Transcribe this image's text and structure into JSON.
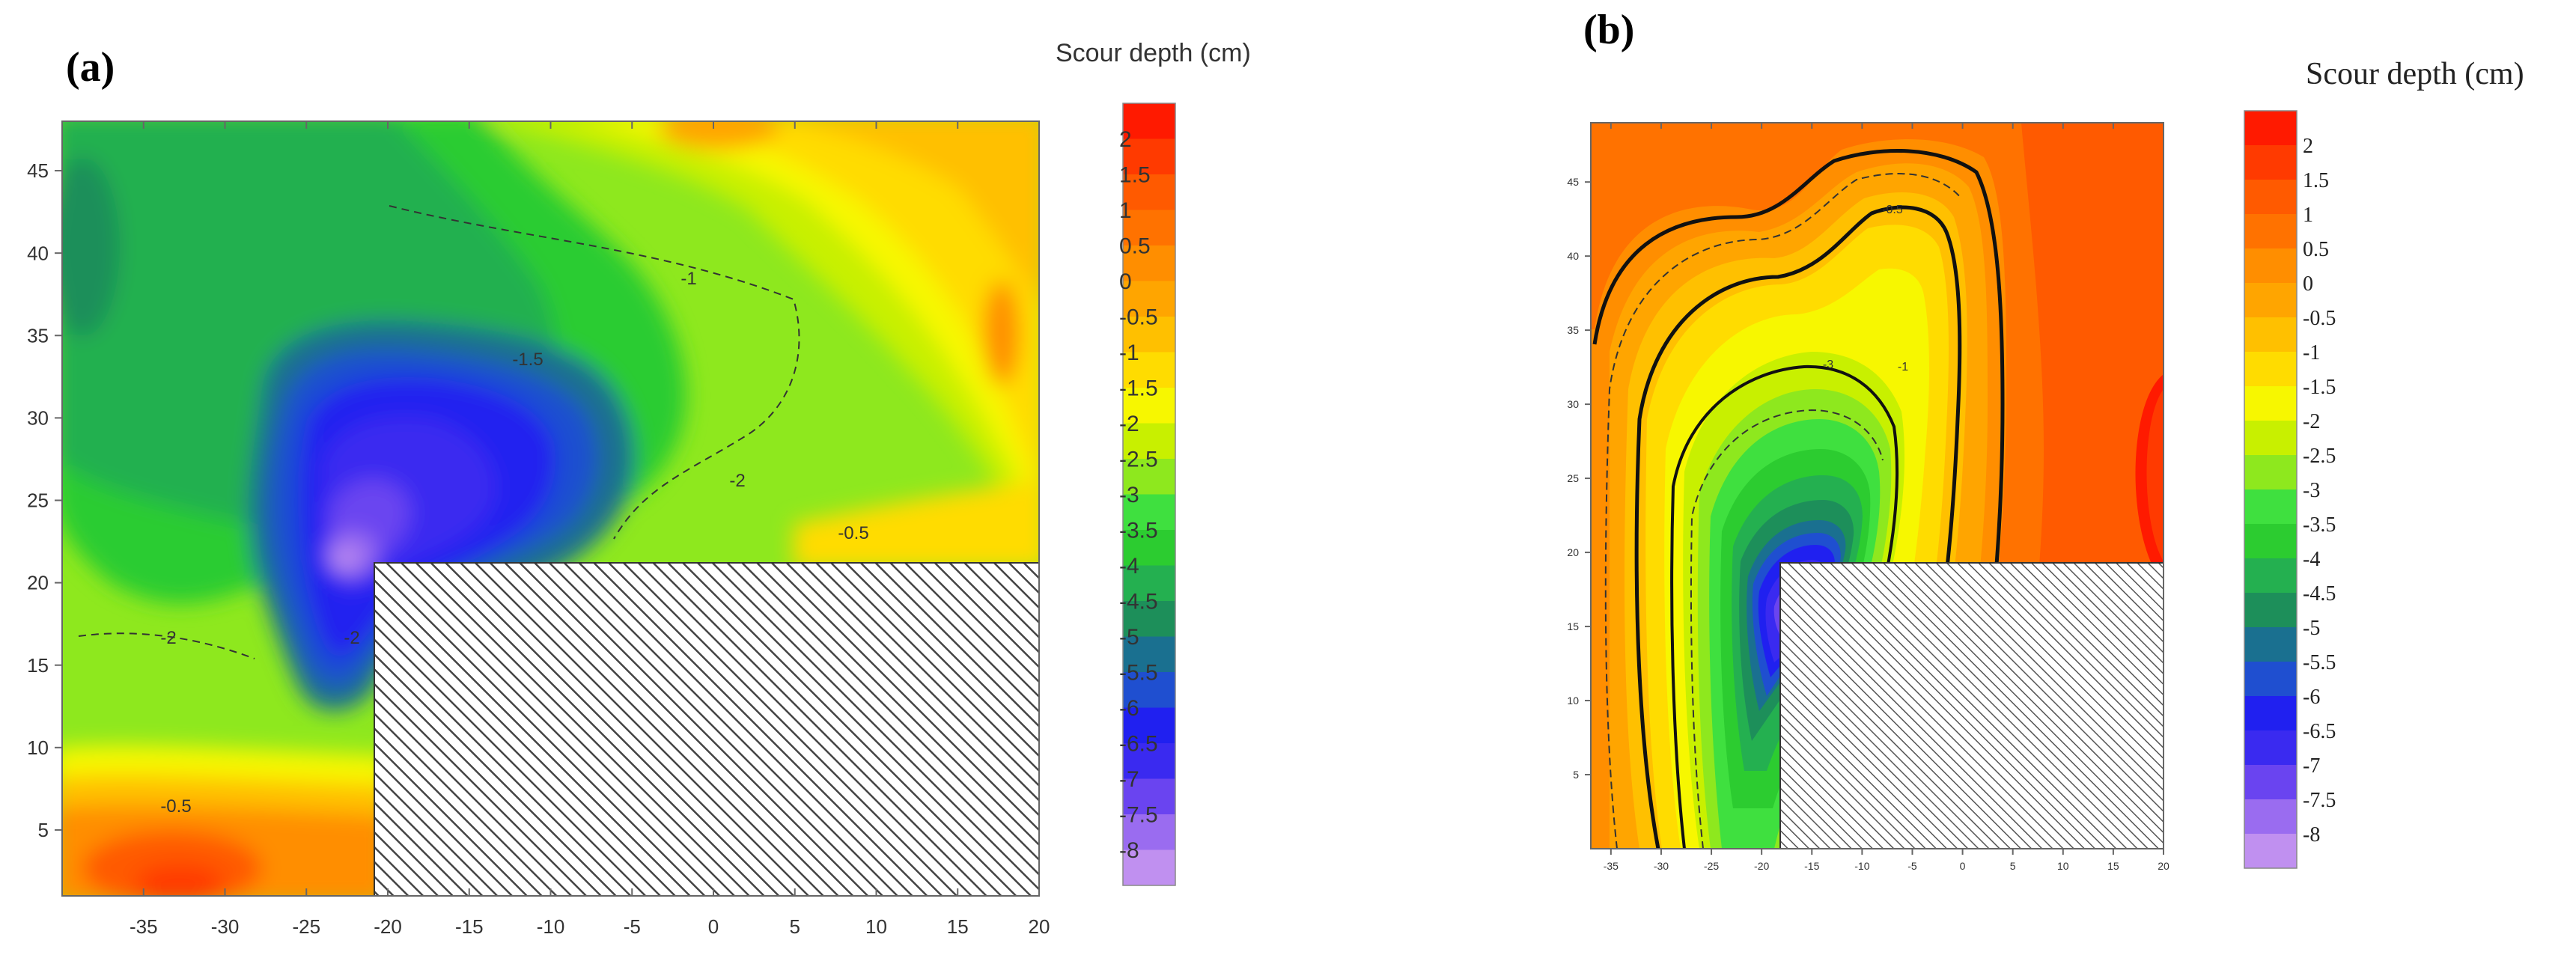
{
  "chart_data": [
    {
      "type": "heatmap",
      "panel_label": "(a)",
      "legend_title": "Scour depth (cm)",
      "legend_labels": [
        "2",
        "1.5",
        "1",
        "0.5",
        "0",
        "-0.5",
        "-1",
        "-1.5",
        "-2",
        "-2.5",
        "-3",
        "-3.5",
        "-4",
        "-4.5",
        "-5",
        "-5.5",
        "-6",
        "-6.5",
        "-7",
        "-7.5",
        "-8"
      ],
      "x_ticks": [
        "-35",
        "-30",
        "-25",
        "-20",
        "-15",
        "-10",
        "-5",
        "0",
        "5",
        "10",
        "15",
        "20"
      ],
      "y_ticks": [
        "5",
        "10",
        "15",
        "20",
        "25",
        "30",
        "35",
        "40",
        "45"
      ],
      "xlim": [
        -40,
        20
      ],
      "ylim": [
        1,
        48
      ],
      "contour_labels": [
        "-1",
        "-1.5",
        "-2",
        "-2",
        "-2",
        "-0.5",
        "-0.5"
      ],
      "pier_region": {
        "x": [
          -20,
          20
        ],
        "y": [
          1,
          21.5
        ]
      }
    },
    {
      "type": "heatmap",
      "panel_label": "(b)",
      "legend_title": "Scour depth (cm)",
      "legend_labels": [
        "2",
        "1.5",
        "1",
        "0.5",
        "0",
        "-0.5",
        "-1",
        "-1.5",
        "-2",
        "-2.5",
        "-3",
        "-3.5",
        "-4",
        "-4.5",
        "-5",
        "-5.5",
        "-6",
        "-6.5",
        "-7",
        "-7.5",
        "-8"
      ],
      "x_ticks": [
        "-35",
        "-30",
        "-25",
        "-20",
        "-15",
        "-10",
        "-5",
        "0",
        "5",
        "10",
        "15",
        "20"
      ],
      "y_ticks": [
        "5",
        "10",
        "15",
        "20",
        "25",
        "30",
        "35",
        "40",
        "45"
      ],
      "xlim": [
        -37,
        20
      ],
      "ylim": [
        0,
        49
      ],
      "contour_labels": [
        "-0.5",
        "-1",
        "-3"
      ],
      "pier_region": {
        "x": [
          -20,
          20
        ],
        "y": [
          0,
          21
        ]
      }
    }
  ],
  "colors": {
    "scale": [
      "#ff1a00",
      "#ff3a00",
      "#ff5a00",
      "#ff7200",
      "#ff8e00",
      "#ffa500",
      "#ffc000",
      "#ffdc00",
      "#f7f700",
      "#c8f000",
      "#8ee81e",
      "#3fe03f",
      "#2ccc30",
      "#24b050",
      "#1d8f5a",
      "#1a7090",
      "#1f4fd0",
      "#2020f0",
      "#3a2af0",
      "#6a44f0",
      "#9a6cf0",
      "#c090f0"
    ]
  }
}
